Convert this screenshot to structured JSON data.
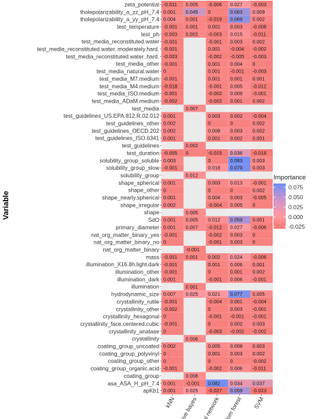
{
  "chart_data": {
    "type": "heatmap",
    "ylabel": "Variable",
    "columns": [
      "kNN",
      "Naive bayes",
      "Neural network",
      "Random forest",
      "SVM"
    ],
    "legend": {
      "title": "Importance",
      "ticks": [
        "0.075",
        "0.050",
        "0.025",
        "0.000",
        "-0.025"
      ],
      "tick_values": [
        0.075,
        0.05,
        0.025,
        0.0,
        -0.025
      ],
      "min": -0.03,
      "max": 0.085,
      "low_color": "#f4756e",
      "mid_color": "#ff9aa0",
      "high_color": "#6f8ff5",
      "placement": "right"
    },
    "na_color": "#ebebeb",
    "rows": [
      {
        "label": "zeta_potential",
        "values": [
          "-0.011",
          "0.005",
          "-0.006",
          "0.027",
          "-0.003"
        ]
      },
      {
        "label": "tholepolarizability_a_zz_pH_7.4",
        "values": [
          "0.001",
          "0.045",
          "0",
          "0.063",
          "0.009"
        ]
      },
      {
        "label": "tholepolarizability_a_yy_pH_7.4",
        "values": [
          "0.004",
          "0.001",
          "-0.019",
          "0.069",
          "0.002"
        ]
      },
      {
        "label": "test_temperature",
        "values": [
          "-0.001",
          "0.001",
          "0.001",
          "0.003",
          "-0.008"
        ]
      },
      {
        "label": "test_ph",
        "values": [
          "-0.003",
          "0.002",
          "-0.003",
          "0.015",
          "-0.011"
        ]
      },
      {
        "label": "test_media_reconstituted.water",
        "values": [
          "-0.001",
          "",
          "-0.001",
          "0.003",
          "0.002"
        ]
      },
      {
        "label": "test_media_reconstituted.water..moderately.hard.",
        "values": [
          "-0.001",
          "",
          "0.001",
          "-0.004",
          "-0.002"
        ]
      },
      {
        "label": "test_media_reconstituted.water..hard.",
        "values": [
          "-0.003",
          "",
          "-0.002",
          "-0.005",
          "-0.003"
        ]
      },
      {
        "label": "test_media_other",
        "values": [
          "-0.001",
          "",
          "0.001",
          "0.004",
          "0"
        ]
      },
      {
        "label": "test_media_natural.water",
        "values": [
          "0",
          "",
          "0.001",
          "-0.001",
          "-0.003"
        ]
      },
      {
        "label": "test_media_M7.medium",
        "values": [
          "-0.001",
          "",
          "0.001",
          "0.001",
          "0.001"
        ]
      },
      {
        "label": "test_media_M4.medium",
        "values": [
          "-0.018",
          "",
          "-0.001",
          "0.005",
          "-0.012"
        ]
      },
      {
        "label": "test_media_ISO.medium",
        "values": [
          "-0.001",
          "",
          "-0.002",
          "0.009",
          "-0.001"
        ]
      },
      {
        "label": "test_media_ADaM.medium",
        "values": [
          "-0.002",
          "",
          "-0.002",
          "0.001",
          "0.002"
        ]
      },
      {
        "label": "test_media",
        "values": [
          "",
          "0.007",
          "",
          "",
          ""
        ]
      },
      {
        "label": "test_guidelines_US.EPA.812.R.02.012",
        "values": [
          "0.001",
          "",
          "0.003",
          "0.002",
          "-0.004"
        ]
      },
      {
        "label": "test_guidelines_other",
        "values": [
          "0.002",
          "",
          "0",
          "0",
          "0.002"
        ]
      },
      {
        "label": "test_guidelines_OECD.202",
        "values": [
          "0.002",
          "",
          "0.008",
          "0.003",
          "0.002"
        ]
      },
      {
        "label": "test_guidelines_ISO.6341",
        "values": [
          "0.001",
          "",
          "0.001",
          "0.002",
          "0.001"
        ]
      },
      {
        "label": "test_guidelines",
        "values": [
          "",
          "0.002",
          "",
          "",
          ""
        ]
      },
      {
        "label": "test_duration",
        "values": [
          "-0.005",
          "0",
          "-0.015",
          "0.036",
          "-0.018"
        ]
      },
      {
        "label": "solubility_group_soluble",
        "values": [
          "0.003",
          "",
          "0",
          "0.083",
          "0.003"
        ]
      },
      {
        "label": "solubility_group_slow",
        "values": [
          "-0.001",
          "",
          "0.018",
          "0.079",
          "0.003"
        ]
      },
      {
        "label": "solubility_group",
        "values": [
          "",
          "0.012",
          "",
          "",
          ""
        ]
      },
      {
        "label": "shape_spherical",
        "values": [
          "0.001",
          "",
          "0.003",
          "0.013",
          "-0.001"
        ]
      },
      {
        "label": "shape_other",
        "values": [
          "0",
          "",
          "0",
          "0",
          "0.002"
        ]
      },
      {
        "label": "shape_nearly.spherical",
        "values": [
          "0.001",
          "",
          "0.004",
          "0.003",
          "-0.005"
        ]
      },
      {
        "label": "shape_irregular",
        "values": [
          "0.002",
          "",
          "-0.004",
          "0.005",
          "0"
        ]
      },
      {
        "label": "shape",
        "values": [
          "",
          "0.005",
          "",
          "",
          ""
        ]
      },
      {
        "label": "SdO",
        "values": [
          "0.001",
          "0.005",
          "0.012",
          "0.059",
          "0.001"
        ]
      },
      {
        "label": "primary_diameter",
        "values": [
          "0.001",
          "0.007",
          "-0.012",
          "0.027",
          "-0.006"
        ]
      },
      {
        "label": "nat_org_matter_binary_yes",
        "values": [
          "-0.001",
          "",
          "-0.002",
          "0.003",
          "0"
        ]
      },
      {
        "label": "nat_org_matter_binary_no",
        "values": [
          "0",
          "",
          "-0.001",
          "0.003",
          "0"
        ]
      },
      {
        "label": "nat_org_matter_binary",
        "values": [
          "",
          "-0.001",
          "",
          "",
          ""
        ]
      },
      {
        "label": "mass",
        "values": [
          "-0.001",
          "0.001",
          "0.002",
          "0.024",
          "-0.006"
        ]
      },
      {
        "label": "illumination_X16.8h.light.dark",
        "values": [
          "-0.001",
          "",
          "0.001",
          "0.006",
          "0.001"
        ]
      },
      {
        "label": "illumination_other",
        "values": [
          "-0.001",
          "",
          "0",
          "0.001",
          "0.002"
        ]
      },
      {
        "label": "illumination_dark",
        "values": [
          "0.001",
          "",
          "-0.001",
          "0.006",
          "-0.001"
        ]
      },
      {
        "label": "illumination",
        "values": [
          "",
          "0.001",
          "",
          "",
          ""
        ]
      },
      {
        "label": "hydrodynamic_size",
        "values": [
          "0.007",
          "0.025",
          "0.021",
          "0.077",
          "0.005"
        ]
      },
      {
        "label": "crystallinity_rutile",
        "values": [
          "-0.001",
          "",
          "-0.004",
          "0.001",
          "-0.004"
        ]
      },
      {
        "label": "crystallinity_other",
        "values": [
          "-0.002",
          "",
          "0",
          "0.003",
          "-0.001"
        ]
      },
      {
        "label": "crystallinity_hexagonal",
        "values": [
          "0",
          "",
          "-0.001",
          "-0.001",
          "-0.001"
        ]
      },
      {
        "label": "crystallinity_face.centered.cubic",
        "values": [
          "-0.001",
          "",
          "0",
          "0.002",
          "0.003"
        ]
      },
      {
        "label": "crystallinity_anatase",
        "values": [
          "0",
          "",
          "-0.003",
          "-0.002",
          "-0.002"
        ]
      },
      {
        "label": "crystallinity",
        "values": [
          "",
          "0.006",
          "",
          "",
          ""
        ]
      },
      {
        "label": "coating_group_uncoated",
        "values": [
          "0.002",
          "",
          "0.005",
          "0.008",
          "0.003"
        ]
      },
      {
        "label": "coating_group_polyvinyl",
        "values": [
          "0",
          "",
          "0.001",
          "0.003",
          "0.002"
        ]
      },
      {
        "label": "coating_group_other",
        "values": [
          "0",
          "",
          "0",
          "0",
          "-0.002"
        ]
      },
      {
        "label": "coating_group_organic.acid",
        "values": [
          "-0.001",
          "",
          "-0.002",
          "0.006",
          "-0.011"
        ]
      },
      {
        "label": "coating_group",
        "values": [
          "",
          "0.008",
          "",
          "",
          ""
        ]
      },
      {
        "label": "asa_ASA_H_pH_7.4",
        "values": [
          "0.001",
          "-0.001",
          "0.082",
          "0.034",
          "0.037"
        ]
      },
      {
        "label": "apKb1",
        "values": [
          "0.001",
          "0.025",
          "-0.027",
          "0.059",
          "-0.023"
        ]
      }
    ]
  }
}
